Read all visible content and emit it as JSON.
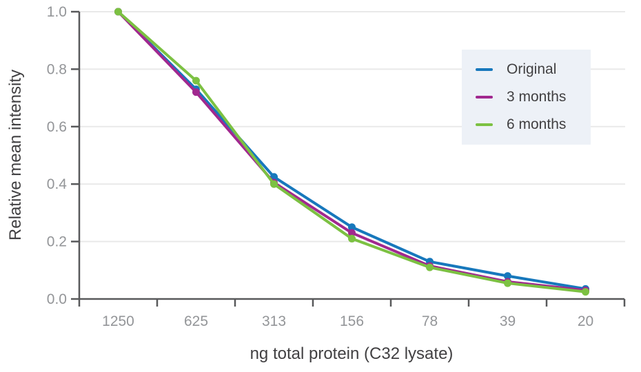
{
  "chart_data": {
    "type": "line",
    "title": "",
    "xlabel": "ng total protein (C32 lysate)",
    "ylabel": "Relative mean intensity",
    "categories": [
      "1250",
      "625",
      "313",
      "156",
      "78",
      "39",
      "20"
    ],
    "series": [
      {
        "name": "Original",
        "color": "#1778bc",
        "values": [
          1.0,
          0.73,
          0.425,
          0.25,
          0.13,
          0.08,
          0.035
        ]
      },
      {
        "name": "3 months",
        "color": "#a1288f",
        "values": [
          1.0,
          0.72,
          0.405,
          0.23,
          0.115,
          0.06,
          0.03
        ]
      },
      {
        "name": "6 months",
        "color": "#7cc142",
        "values": [
          1.0,
          0.76,
          0.4,
          0.21,
          0.11,
          0.055,
          0.025
        ]
      }
    ],
    "ylim": [
      0.0,
      1.0
    ],
    "yticks": [
      0.0,
      0.2,
      0.4,
      0.6,
      0.8,
      1.0
    ],
    "grid": "horizontal",
    "legend_position": "upper-right",
    "legend_background": "#edf1f7",
    "axis_color": "#58595b",
    "grid_color": "#e9e9e9",
    "tick_label_color": "#939598",
    "axis_label_color": "#414042",
    "marker": "circle",
    "line_width": 4
  }
}
